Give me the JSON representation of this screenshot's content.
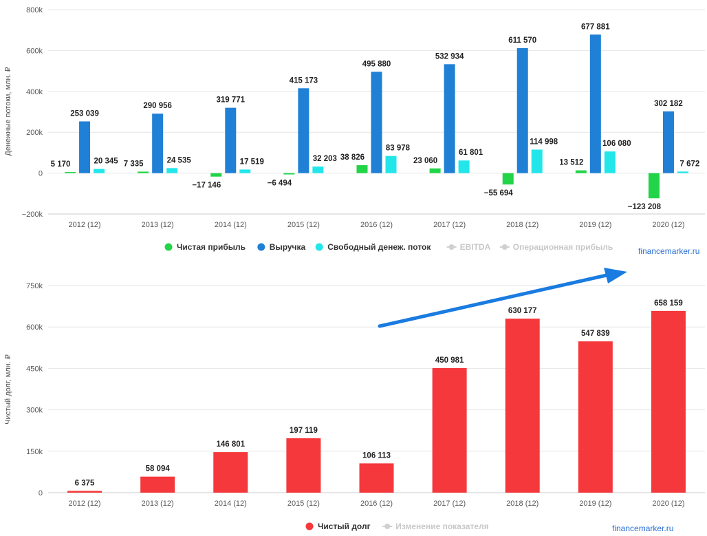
{
  "chart_data": [
    {
      "type": "bar",
      "title": "",
      "ylabel": "Денежные потоки, млн. ₽",
      "categories": [
        "2012 (12)",
        "2013 (12)",
        "2014 (12)",
        "2015 (12)",
        "2016 (12)",
        "2017 (12)",
        "2018 (12)",
        "2019 (12)",
        "2020 (12)"
      ],
      "ylim": [
        -200000,
        800000
      ],
      "yticks": [
        -200000,
        0,
        200000,
        400000,
        600000,
        800000
      ],
      "ytick_labels": [
        "−200k",
        "0",
        "200k",
        "400k",
        "600k",
        "800k"
      ],
      "grid": true,
      "legend_position": "bottom",
      "series": [
        {
          "name": "Чистая прибыль",
          "color": "#22d447",
          "values": [
            5170,
            7335,
            -17146,
            -6494,
            38826,
            23060,
            -55694,
            13512,
            -123208
          ],
          "labels": [
            "5 170",
            "7 335",
            "−17 146",
            "−6 494",
            "38 826",
            "23 060",
            "−55 694",
            "13 512",
            "−123 208"
          ]
        },
        {
          "name": "Выручка",
          "color": "#1f80d6",
          "values": [
            253039,
            290956,
            319771,
            415173,
            495880,
            532934,
            611570,
            677881,
            302182
          ],
          "labels": [
            "253 039",
            "290 956",
            "319 771",
            "415 173",
            "495 880",
            "532 934",
            "611 570",
            "677 881",
            "302 182"
          ]
        },
        {
          "name": "Свободный денеж. поток",
          "color": "#22e6e9",
          "values": [
            20345,
            24535,
            17519,
            32203,
            83978,
            61801,
            114998,
            106080,
            7672
          ],
          "labels": [
            "20 345",
            "24 535",
            "17 519",
            "32 203",
            "83 978",
            "61 801",
            "114 998",
            "106 080",
            "7 672"
          ]
        }
      ],
      "inactive_legend": [
        "EBITDA",
        "Операционная прибыль"
      ],
      "watermark": "financemarker.ru"
    },
    {
      "type": "bar",
      "title": "",
      "ylabel": "Чистый долг, млн. ₽",
      "categories": [
        "2012 (12)",
        "2013 (12)",
        "2014 (12)",
        "2015 (12)",
        "2016 (12)",
        "2017 (12)",
        "2018 (12)",
        "2019 (12)",
        "2020 (12)"
      ],
      "ylim": [
        0,
        750000
      ],
      "yticks": [
        0,
        150000,
        300000,
        450000,
        600000,
        750000
      ],
      "ytick_labels": [
        "0",
        "150k",
        "300k",
        "450k",
        "600k",
        "750k"
      ],
      "grid": true,
      "legend_position": "bottom",
      "series": [
        {
          "name": "Чистый долг",
          "color": "#f5383b",
          "values": [
            6375,
            58094,
            146801,
            197119,
            106113,
            450981,
            630177,
            547839,
            658159
          ],
          "labels": [
            "6 375",
            "58 094",
            "146 801",
            "197 119",
            "106 113",
            "450 981",
            "630 177",
            "547 839",
            "658 159"
          ]
        }
      ],
      "inactive_legend": [
        "Изменение показателя"
      ],
      "watermark": "financemarker.ru"
    }
  ]
}
